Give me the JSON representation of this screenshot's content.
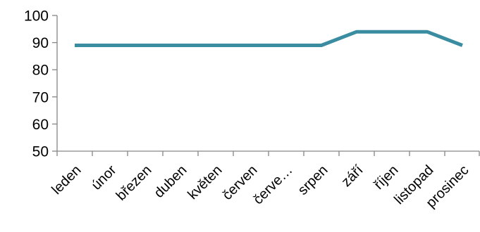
{
  "chart_data": {
    "type": "line",
    "title": "",
    "xlabel": "",
    "ylabel": "",
    "categories": [
      "leden",
      "únor",
      "březen",
      "duben",
      "květen",
      "červen",
      "červe…",
      "srpen",
      "září",
      "říjen",
      "listopad",
      "prosinec"
    ],
    "series": [
      {
        "values": [
          89,
          89,
          89,
          89,
          89,
          89,
          89,
          89,
          94,
          94,
          94,
          89
        ],
        "color": "#3a8da0"
      }
    ],
    "ylim": [
      50,
      100
    ],
    "yticks": [
      50,
      60,
      70,
      80,
      90,
      100
    ],
    "grid": false,
    "legend": "none",
    "axis_color": "#868686"
  }
}
